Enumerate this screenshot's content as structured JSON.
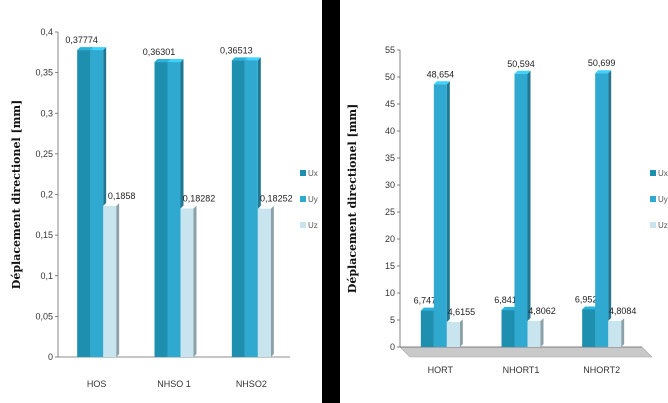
{
  "chart_data": [
    {
      "type": "bar",
      "title": "",
      "xlabel": "",
      "ylabel": "Déplacement directionel [mm]",
      "ylim": [
        0,
        0.4
      ],
      "yticks": [
        "0",
        "0,05",
        "0,1",
        "0,15",
        "0,2",
        "0,25",
        "0,3",
        "0,35",
        "0,4"
      ],
      "categories": [
        "HOS",
        "NHSO 1",
        "NHSO2"
      ],
      "series": [
        {
          "name": "Ux",
          "values": [
            0.37774,
            0.36301,
            0.36513
          ],
          "labels": [
            "0,37774",
            "0,36301",
            "0,36513"
          ]
        },
        {
          "name": "Uy",
          "values": [
            0.37774,
            0.36301,
            0.36513
          ],
          "labels": [
            "",
            "",
            ""
          ]
        },
        {
          "name": "Uz",
          "values": [
            0.1858,
            0.18282,
            0.18252
          ],
          "labels": [
            "0,1858",
            "0,18282",
            "0,18252"
          ]
        }
      ],
      "colors": [
        "#1f8fb0",
        "#2fa9cf",
        "#c8e4ef"
      ],
      "legend": "right",
      "grid": false
    },
    {
      "type": "bar",
      "title": "",
      "xlabel": "",
      "ylabel": "Déplacement directionel [mm]",
      "ylim": [
        0,
        55
      ],
      "yticks": [
        "0",
        "5",
        "10",
        "15",
        "20",
        "25",
        "30",
        "35",
        "40",
        "45",
        "50",
        "55"
      ],
      "categories": [
        "HORT",
        "NHORT1",
        "NHORT2"
      ],
      "series": [
        {
          "name": "Ux",
          "values": [
            6.7475,
            6.8418,
            6.9522
          ],
          "labels": [
            "6,7475",
            "6,8418",
            "6,9522"
          ]
        },
        {
          "name": "Uy",
          "values": [
            48.654,
            50.594,
            50.699
          ],
          "labels": [
            "48,654",
            "50,594",
            "50,699"
          ]
        },
        {
          "name": "Uz",
          "values": [
            4.6155,
            4.8062,
            4.8084
          ],
          "labels": [
            "4,6155",
            "4,8062",
            "4,8084"
          ]
        }
      ],
      "colors": [
        "#1f8fb0",
        "#2fa9cf",
        "#c8e4ef"
      ],
      "legend": "right",
      "grid": false
    }
  ]
}
